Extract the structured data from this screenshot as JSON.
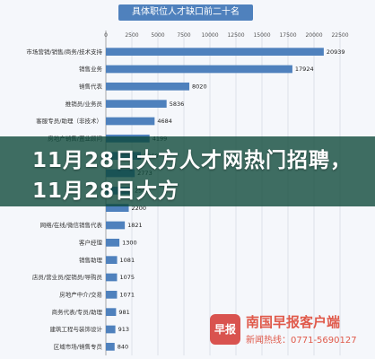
{
  "headline": "11月28日大方人才网热门招聘，11月28日大方",
  "watermark": {
    "logo_text": "早报",
    "name": "南国早报客户端",
    "phone": "新闻热线：0771-5690127"
  },
  "colors": {
    "bar": "#4f81bd",
    "overlay": "#0a4637"
  },
  "chart_data": {
    "type": "bar",
    "orientation": "horizontal",
    "title": "具体职位人才缺口前二十名",
    "xlim": [
      0,
      25000
    ],
    "xticks": [
      0,
      2500,
      5000,
      7500,
      10000,
      12500,
      15000,
      17500,
      20000,
      22500
    ],
    "grid": true,
    "categories": [
      "市场营销/销售/商务/技术支持",
      "销售业务",
      "销售代表",
      "推销员/业务员",
      "客服专员/助理（非技术）",
      "房地产销售/置业顾问",
      "",
      "",
      "",
      "",
      "网络/在线/微信销售代表",
      "客户经理",
      "销售助理",
      "店员/营业员/促销员/导购员",
      "房地产中介/交易",
      "商务代表/专员/助理",
      "建筑工程与装饰设计",
      "区域市场/销售专员"
    ],
    "values": [
      20939,
      17924,
      8020,
      5836,
      4684,
      4199,
      3360,
      2773,
      2500,
      2200,
      1821,
      1300,
      1081,
      1075,
      1071,
      981,
      913,
      840
    ]
  }
}
